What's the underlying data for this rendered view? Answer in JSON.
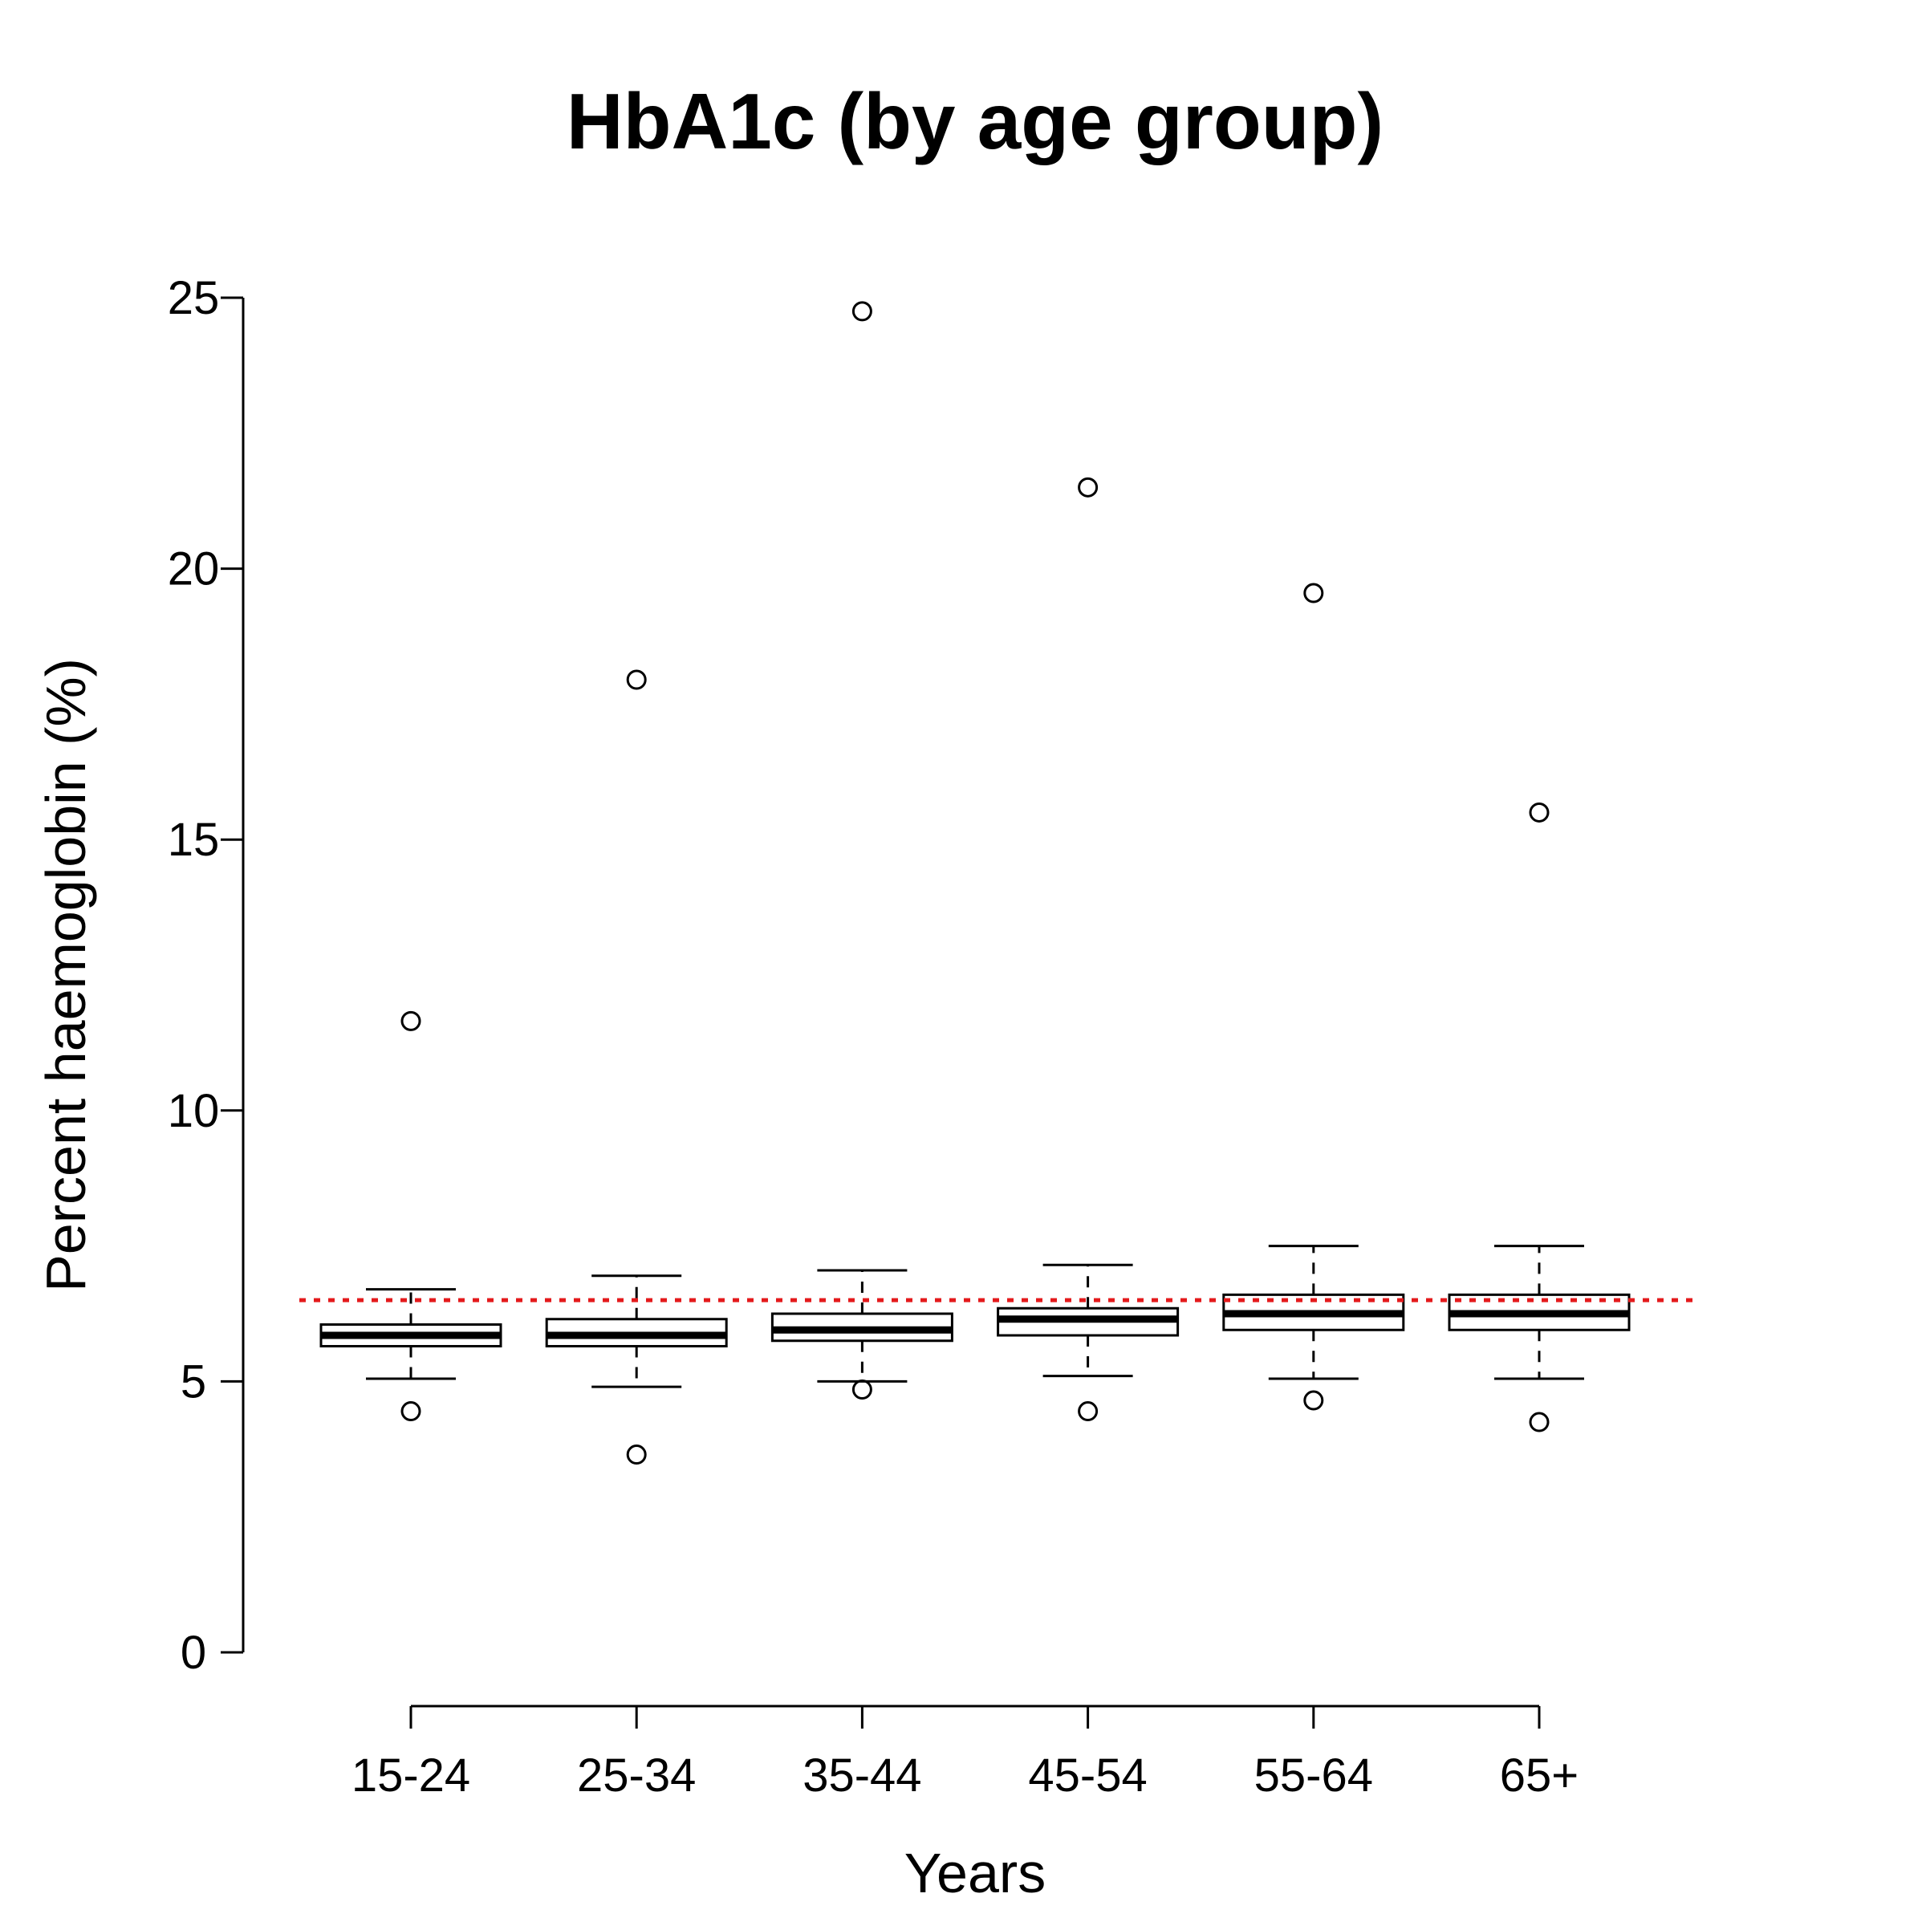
{
  "chart_data": {
    "type": "boxplot",
    "title": "HbA1c (by age group)",
    "xlabel": "Years",
    "ylabel": "Percent haemoglobin (%)",
    "ylim": [
      0,
      25
    ],
    "yticks": [
      "0",
      "5",
      "10",
      "15",
      "20",
      "25"
    ],
    "categories": [
      "15-24",
      "25-34",
      "35-44",
      "45-54",
      "55-64",
      "65+"
    ],
    "boxes": [
      {
        "whisker_low": 5.05,
        "q1": 5.65,
        "median": 5.85,
        "q3": 6.05,
        "whisker_high": 6.7,
        "outliers": [
          4.45,
          11.65
        ]
      },
      {
        "whisker_low": 4.9,
        "q1": 5.65,
        "median": 5.85,
        "q3": 6.15,
        "whisker_high": 6.95,
        "outliers": [
          3.65,
          17.95
        ]
      },
      {
        "whisker_low": 5.0,
        "q1": 5.75,
        "median": 5.95,
        "q3": 6.25,
        "whisker_high": 7.05,
        "outliers": [
          4.85,
          24.75
        ]
      },
      {
        "whisker_low": 5.1,
        "q1": 5.85,
        "median": 6.15,
        "q3": 6.35,
        "whisker_high": 7.15,
        "outliers": [
          4.45,
          21.5
        ]
      },
      {
        "whisker_low": 5.05,
        "q1": 5.95,
        "median": 6.25,
        "q3": 6.6,
        "whisker_high": 7.5,
        "outliers": [
          4.65,
          19.55
        ]
      },
      {
        "whisker_low": 5.05,
        "q1": 5.95,
        "median": 6.25,
        "q3": 6.6,
        "whisker_high": 7.5,
        "outliers": [
          4.25,
          15.5
        ]
      }
    ],
    "reference_line": {
      "y": 6.5,
      "color": "#e41a1c",
      "style": "dotted"
    },
    "grid": false,
    "legend": "none"
  }
}
